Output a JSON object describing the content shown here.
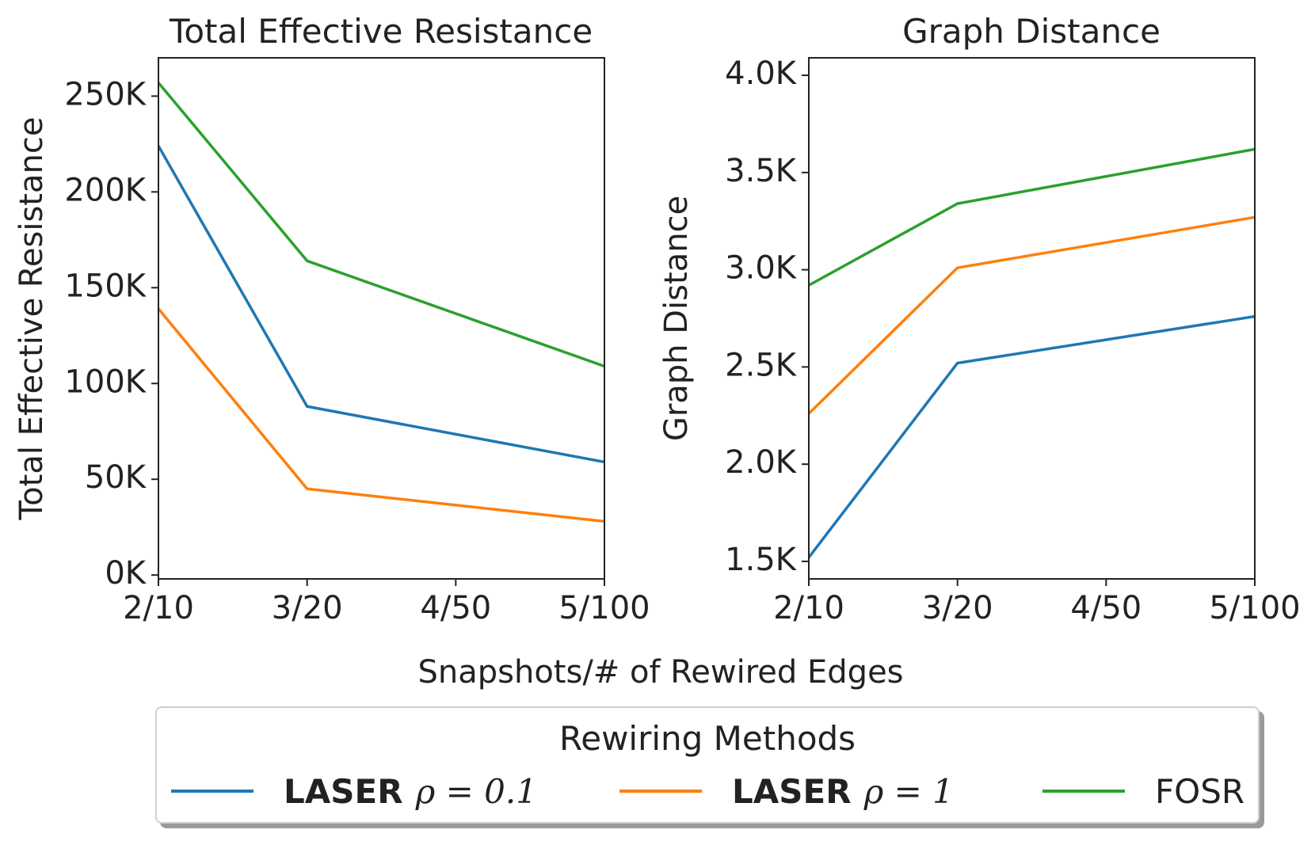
{
  "chart_data": [
    {
      "type": "line",
      "title": "Total Effective Resistance",
      "ylabel": "Total Effective Resistance",
      "xlabel": "",
      "categories": [
        "2/10",
        "3/20",
        "4/50",
        "5/100"
      ],
      "x": [
        0,
        1,
        3
      ],
      "ylim": [
        -2000,
        270000
      ],
      "yticks": [
        0,
        50000,
        100000,
        150000,
        200000,
        250000
      ],
      "ytick_labels": [
        "0K",
        "50K",
        "100K",
        "150K",
        "200K",
        "250K"
      ],
      "grid": false,
      "series": [
        {
          "name": "LASER ρ = 0.1",
          "color": "#1f77b4",
          "values": [
            224000,
            88000,
            59000
          ]
        },
        {
          "name": "LASER ρ = 1",
          "color": "#ff7f0e",
          "values": [
            139000,
            45000,
            28000
          ]
        },
        {
          "name": "FOSR",
          "color": "#2ca02c",
          "values": [
            257000,
            164000,
            109000
          ]
        }
      ]
    },
    {
      "type": "line",
      "title": "Graph Distance",
      "ylabel": "Graph Distance",
      "xlabel": "",
      "categories": [
        "2/10",
        "3/20",
        "4/50",
        "5/100"
      ],
      "x": [
        0,
        1,
        3
      ],
      "ylim": [
        1410,
        4090
      ],
      "yticks": [
        1500,
        2000,
        2500,
        3000,
        3500,
        4000
      ],
      "ytick_labels": [
        "1.5K",
        "2.0K",
        "2.5K",
        "3.0K",
        "3.5K",
        "4.0K"
      ],
      "grid": false,
      "series": [
        {
          "name": "LASER ρ = 0.1",
          "color": "#1f77b4",
          "values": [
            1520,
            2520,
            2760
          ]
        },
        {
          "name": "LASER ρ = 1",
          "color": "#ff7f0e",
          "values": [
            2260,
            3010,
            3270
          ]
        },
        {
          "name": "FOSR",
          "color": "#2ca02c",
          "values": [
            2920,
            3340,
            3620
          ]
        }
      ]
    }
  ],
  "figure": {
    "shared_xlabel": "Snapshots/# of Rewired Edges"
  },
  "legend": {
    "title": "Rewiring Methods",
    "placement": "bottom-center",
    "items": [
      {
        "bold": "LASER",
        "math": "ρ = 0.1",
        "plain": "",
        "color": "#1f77b4"
      },
      {
        "bold": "LASER",
        "math": "ρ = 1",
        "plain": "",
        "color": "#ff7f0e"
      },
      {
        "bold": "",
        "math": "",
        "plain": "FOSR",
        "color": "#2ca02c"
      }
    ]
  }
}
